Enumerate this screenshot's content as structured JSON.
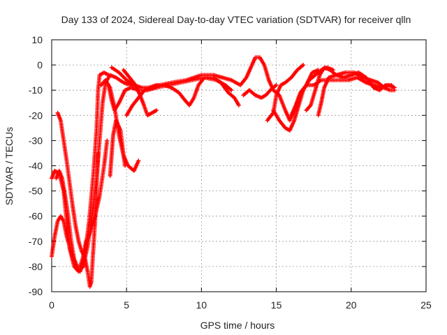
{
  "chart_data": {
    "type": "scatter",
    "title": "Day 133 of 2024, Sidereal Day-to-day VTEC variation (SDTVAR) for receiver qlln",
    "xlabel": "GPS time / hours",
    "ylabel": "SDTVAR / TECUs",
    "xlim": [
      0,
      25
    ],
    "ylim": [
      -90,
      10
    ],
    "xticks": [
      0,
      5,
      10,
      15,
      20,
      25
    ],
    "yticks": [
      10,
      0,
      -10,
      -20,
      -30,
      -40,
      -50,
      -60,
      -70,
      -80,
      -90
    ],
    "grid": true,
    "marker": "+",
    "color": "#ff0000",
    "series": [
      {
        "name": "arc1",
        "points": [
          [
            0.0,
            -45
          ],
          [
            0.2,
            -42
          ],
          [
            0.5,
            -43
          ],
          [
            0.8,
            -50
          ],
          [
            1.0,
            -62
          ],
          [
            1.2,
            -73
          ],
          [
            1.5,
            -80
          ],
          [
            1.8,
            -82
          ],
          [
            2.1,
            -80
          ],
          [
            2.4,
            -72
          ],
          [
            2.7,
            -60
          ],
          [
            3.0,
            -45
          ],
          [
            3.2,
            -30
          ],
          [
            3.4,
            -15
          ],
          [
            3.6,
            -7
          ],
          [
            3.9,
            -4
          ],
          [
            4.3,
            -5
          ],
          [
            4.8,
            -7
          ],
          [
            5.3,
            -8
          ],
          [
            6.0,
            -9
          ]
        ]
      },
      {
        "name": "arc2",
        "points": [
          [
            0.0,
            -76
          ],
          [
            0.2,
            -68
          ],
          [
            0.4,
            -62
          ],
          [
            0.6,
            -60
          ],
          [
            0.8,
            -62
          ],
          [
            1.0,
            -68
          ],
          [
            1.3,
            -74
          ],
          [
            1.6,
            -80
          ],
          [
            1.9,
            -82
          ],
          [
            2.2,
            -76
          ],
          [
            2.5,
            -62
          ],
          [
            2.8,
            -42
          ],
          [
            3.0,
            -25
          ],
          [
            3.1,
            -10
          ],
          [
            3.2,
            -4
          ],
          [
            3.5,
            -3
          ],
          [
            3.8,
            -4
          ]
        ]
      },
      {
        "name": "arc3",
        "points": [
          [
            0.4,
            -19
          ],
          [
            0.6,
            -22
          ],
          [
            0.8,
            -30
          ],
          [
            1.0,
            -38
          ],
          [
            1.2,
            -47
          ],
          [
            1.4,
            -56
          ],
          [
            1.6,
            -64
          ],
          [
            1.8,
            -70
          ],
          [
            2.0,
            -74
          ],
          [
            2.2,
            -76
          ],
          [
            2.4,
            -82
          ],
          [
            2.55,
            -88
          ],
          [
            2.65,
            -86
          ],
          [
            2.75,
            -76
          ],
          [
            2.9,
            -62
          ],
          [
            3.0,
            -48
          ],
          [
            3.1,
            -35
          ]
        ]
      },
      {
        "name": "arc4",
        "points": [
          [
            0.3,
            -45
          ],
          [
            0.5,
            -42
          ],
          [
            0.7,
            -45
          ],
          [
            0.9,
            -52
          ],
          [
            1.1,
            -60
          ],
          [
            1.3,
            -70
          ],
          [
            1.5,
            -77
          ],
          [
            1.7,
            -80
          ],
          [
            1.9,
            -80
          ],
          [
            2.1,
            -76
          ],
          [
            2.3,
            -70
          ],
          [
            2.6,
            -66
          ],
          [
            2.9,
            -60
          ],
          [
            3.2,
            -52
          ],
          [
            3.5,
            -40
          ],
          [
            3.7,
            -30
          ]
        ]
      },
      {
        "name": "arc5",
        "points": [
          [
            3.3,
            -8
          ],
          [
            3.6,
            -6
          ],
          [
            3.9,
            -9
          ],
          [
            4.2,
            -17
          ],
          [
            4.5,
            -28
          ],
          [
            4.8,
            -36
          ],
          [
            5.1,
            -40
          ],
          [
            5.5,
            -42
          ],
          [
            5.8,
            -38
          ]
        ]
      },
      {
        "name": "arc6",
        "points": [
          [
            3.9,
            -44
          ],
          [
            4.0,
            -36
          ],
          [
            4.1,
            -28
          ],
          [
            4.3,
            -22
          ],
          [
            4.6,
            -26
          ],
          [
            4.8,
            -36
          ],
          [
            4.9,
            -40
          ]
        ]
      },
      {
        "name": "arc7",
        "points": [
          [
            3.8,
            -8
          ],
          [
            4.0,
            -14
          ],
          [
            4.2,
            -18
          ],
          [
            4.5,
            -15
          ],
          [
            4.9,
            -10
          ],
          [
            5.3,
            -9
          ],
          [
            5.8,
            -10
          ],
          [
            6.4,
            -10
          ],
          [
            7.0,
            -9
          ],
          [
            7.8,
            -8
          ],
          [
            8.6,
            -7
          ],
          [
            9.4,
            -6
          ],
          [
            10.2,
            -5
          ],
          [
            11.0,
            -6
          ],
          [
            11.6,
            -8
          ],
          [
            12.0,
            -10
          ]
        ]
      },
      {
        "name": "arc8",
        "points": [
          [
            4.0,
            -1
          ],
          [
            4.5,
            -3
          ],
          [
            5.0,
            -6
          ],
          [
            5.5,
            -8
          ],
          [
            6.0,
            -9
          ],
          [
            6.5,
            -9
          ],
          [
            7.0,
            -8
          ],
          [
            7.5,
            -8
          ],
          [
            8.0,
            -9
          ],
          [
            8.5,
            -11
          ],
          [
            8.9,
            -14
          ],
          [
            9.2,
            -16
          ],
          [
            9.5,
            -13
          ],
          [
            9.8,
            -8
          ],
          [
            10.2,
            -5
          ],
          [
            10.8,
            -5
          ],
          [
            11.3,
            -7
          ],
          [
            11.8,
            -11
          ],
          [
            12.2,
            -13
          ],
          [
            12.5,
            -16
          ]
        ]
      },
      {
        "name": "arc9",
        "points": [
          [
            4.8,
            -2
          ],
          [
            5.2,
            -5
          ],
          [
            5.6,
            -8
          ],
          [
            5.9,
            -12
          ],
          [
            6.1,
            -15
          ],
          [
            6.4,
            -20
          ],
          [
            6.7,
            -19
          ],
          [
            7.0,
            -18
          ]
        ]
      },
      {
        "name": "arc10",
        "points": [
          [
            5.0,
            -20
          ],
          [
            5.4,
            -16
          ],
          [
            5.8,
            -13
          ],
          [
            6.2,
            -10
          ],
          [
            6.6,
            -9
          ],
          [
            7.2,
            -8
          ],
          [
            8.0,
            -7
          ],
          [
            9.0,
            -6
          ],
          [
            10.0,
            -4
          ],
          [
            10.8,
            -4
          ],
          [
            11.4,
            -5
          ],
          [
            12.0,
            -6
          ],
          [
            12.6,
            -8
          ],
          [
            13.0,
            -5
          ],
          [
            13.3,
            -1
          ],
          [
            13.6,
            3
          ],
          [
            13.9,
            3
          ],
          [
            14.2,
            0
          ],
          [
            14.5,
            -6
          ],
          [
            14.8,
            -10
          ],
          [
            15.2,
            -12
          ],
          [
            15.6,
            -18
          ],
          [
            15.9,
            -22
          ],
          [
            16.2,
            -18
          ],
          [
            16.6,
            -12
          ],
          [
            17.0,
            -8
          ],
          [
            17.4,
            -3
          ],
          [
            17.8,
            -2
          ]
        ]
      },
      {
        "name": "arc11",
        "points": [
          [
            12.8,
            -12
          ],
          [
            13.2,
            -10
          ],
          [
            13.6,
            -12
          ],
          [
            14.0,
            -13
          ],
          [
            14.3,
            -12
          ],
          [
            14.6,
            -10
          ],
          [
            15.0,
            -8
          ]
        ]
      },
      {
        "name": "arc12",
        "points": [
          [
            14.4,
            -22
          ],
          [
            14.8,
            -19
          ],
          [
            15.0,
            -12
          ],
          [
            15.3,
            -8
          ],
          [
            15.6,
            -7
          ],
          [
            16.0,
            -5
          ],
          [
            16.4,
            -2
          ],
          [
            16.8,
            0
          ]
        ]
      },
      {
        "name": "arc13",
        "points": [
          [
            14.8,
            -18
          ],
          [
            15.2,
            -22
          ],
          [
            15.6,
            -25
          ],
          [
            15.9,
            -26
          ],
          [
            16.2,
            -22
          ],
          [
            16.5,
            -16
          ],
          [
            16.8,
            -10
          ],
          [
            17.2,
            -6
          ],
          [
            17.6,
            -4
          ],
          [
            18.0,
            -2
          ],
          [
            18.4,
            -1
          ],
          [
            18.8,
            -2
          ]
        ]
      },
      {
        "name": "arc14",
        "points": [
          [
            16.0,
            -20
          ],
          [
            16.3,
            -16
          ],
          [
            16.6,
            -11
          ],
          [
            17.0,
            -8
          ],
          [
            17.5,
            -8
          ],
          [
            18.0,
            -6
          ],
          [
            18.6,
            -6
          ],
          [
            19.2,
            -6
          ],
          [
            19.8,
            -6
          ],
          [
            20.4,
            -5
          ],
          [
            21.0,
            -7
          ],
          [
            21.5,
            -8
          ],
          [
            22.0,
            -9
          ],
          [
            22.5,
            -8
          ],
          [
            22.9,
            -9
          ]
        ]
      },
      {
        "name": "arc15",
        "points": [
          [
            17.0,
            -18
          ],
          [
            17.3,
            -16
          ],
          [
            17.6,
            -10
          ],
          [
            17.9,
            -4
          ],
          [
            18.2,
            -1
          ],
          [
            18.6,
            -2
          ],
          [
            19.0,
            -4
          ],
          [
            19.5,
            -5
          ],
          [
            20.0,
            -4
          ],
          [
            20.5,
            -3
          ],
          [
            21.0,
            -5
          ],
          [
            21.5,
            -9
          ],
          [
            21.9,
            -10
          ],
          [
            22.3,
            -8
          ],
          [
            22.7,
            -8
          ]
        ]
      },
      {
        "name": "arc16",
        "points": [
          [
            17.8,
            -20
          ],
          [
            18.0,
            -15
          ],
          [
            18.2,
            -9
          ],
          [
            18.5,
            -5
          ],
          [
            19.0,
            -4
          ],
          [
            19.6,
            -3
          ],
          [
            20.2,
            -3
          ],
          [
            20.8,
            -5
          ],
          [
            21.3,
            -6
          ],
          [
            21.8,
            -7
          ],
          [
            22.2,
            -9
          ],
          [
            22.6,
            -10
          ],
          [
            22.9,
            -10
          ]
        ]
      }
    ]
  }
}
